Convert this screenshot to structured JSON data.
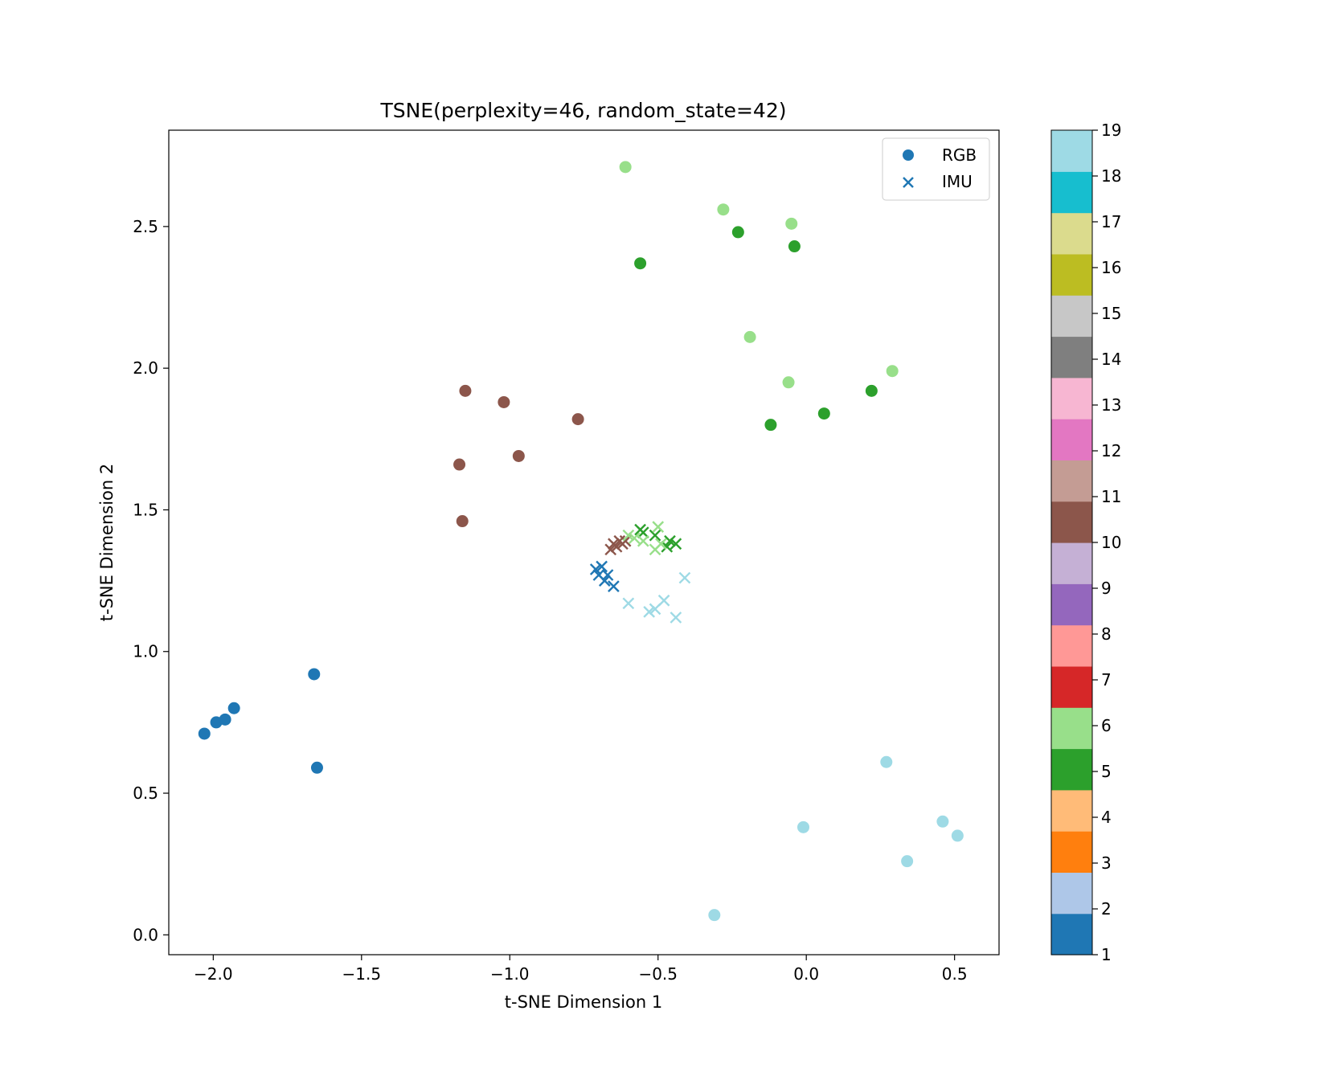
{
  "chart_data": {
    "type": "scatter",
    "title": "TSNE(perplexity=46, random_state=42)",
    "xlabel": "t-SNE Dimension 1",
    "ylabel": "t-SNE Dimension 2",
    "xlim": [
      -2.15,
      0.65
    ],
    "ylim": [
      -0.07,
      2.84
    ],
    "x_ticks": [
      -2.0,
      -1.5,
      -1.0,
      -0.5,
      0.0,
      0.5
    ],
    "x_tick_labels": [
      "−2.0",
      "−1.5",
      "−1.0",
      "−0.5",
      "0.0",
      "0.5"
    ],
    "y_ticks": [
      0.0,
      0.5,
      1.0,
      1.5,
      2.0,
      2.5
    ],
    "y_tick_labels": [
      "0.0",
      "0.5",
      "1.0",
      "1.5",
      "2.0",
      "2.5"
    ],
    "grid": false,
    "legend": {
      "placement": "top-right",
      "entries": [
        {
          "label": "RGB",
          "marker": "circle"
        },
        {
          "label": "IMU",
          "marker": "x"
        }
      ]
    },
    "colorbar": {
      "min": 1,
      "max": 19,
      "ticks": [
        "1",
        "2",
        "3",
        "4",
        "5",
        "6",
        "7",
        "8",
        "9",
        "10",
        "11",
        "12",
        "13",
        "14",
        "15",
        "16",
        "17",
        "18",
        "19"
      ],
      "colors": [
        "#1f77b4",
        "#aec7e8",
        "#ff7f0e",
        "#ffbb78",
        "#2ca02c",
        "#98df8a",
        "#d62728",
        "#ff9896",
        "#9467bd",
        "#c5b0d5",
        "#8c564b",
        "#c49c94",
        "#e377c2",
        "#f7b6d2",
        "#7f7f7f",
        "#c7c7c7",
        "#bcbd22",
        "#dbdb8d",
        "#17becf",
        "#9edae5"
      ]
    },
    "series": [
      {
        "marker": "circle",
        "label_value": 1,
        "color": "#1f77b4",
        "points": [
          [
            -2.03,
            0.71
          ],
          [
            -1.99,
            0.75
          ],
          [
            -1.96,
            0.76
          ],
          [
            -1.93,
            0.8
          ],
          [
            -1.66,
            0.92
          ],
          [
            -1.65,
            0.59
          ]
        ]
      },
      {
        "marker": "circle",
        "label_value": 10,
        "color": "#8c564b",
        "points": [
          [
            -1.15,
            1.92
          ],
          [
            -1.02,
            1.88
          ],
          [
            -0.77,
            1.82
          ],
          [
            -0.97,
            1.69
          ],
          [
            -1.17,
            1.66
          ],
          [
            -1.16,
            1.46
          ]
        ]
      },
      {
        "marker": "circle",
        "label_value": 5,
        "color": "#2ca02c",
        "points": [
          [
            -0.56,
            2.37
          ],
          [
            -0.23,
            2.48
          ],
          [
            -0.04,
            2.43
          ],
          [
            0.22,
            1.92
          ],
          [
            0.06,
            1.84
          ],
          [
            -0.12,
            1.8
          ]
        ]
      },
      {
        "marker": "circle",
        "label_value": 6,
        "color": "#98df8a",
        "points": [
          [
            -0.61,
            2.71
          ],
          [
            -0.28,
            2.56
          ],
          [
            -0.05,
            2.51
          ],
          [
            -0.19,
            2.11
          ],
          [
            -0.06,
            1.95
          ],
          [
            0.29,
            1.99
          ]
        ]
      },
      {
        "marker": "circle",
        "label_value": 19,
        "color": "#9edae5",
        "points": [
          [
            0.27,
            0.61
          ],
          [
            -0.01,
            0.38
          ],
          [
            0.46,
            0.4
          ],
          [
            0.51,
            0.35
          ],
          [
            0.34,
            0.26
          ],
          [
            -0.31,
            0.07
          ]
        ]
      },
      {
        "marker": "x",
        "label_value": 1,
        "color": "#1f77b4",
        "points": [
          [
            -0.71,
            1.29
          ],
          [
            -0.7,
            1.27
          ],
          [
            -0.69,
            1.3
          ],
          [
            -0.68,
            1.25
          ],
          [
            -0.67,
            1.27
          ],
          [
            -0.65,
            1.23
          ]
        ]
      },
      {
        "marker": "x",
        "label_value": 10,
        "color": "#8c564b",
        "points": [
          [
            -0.66,
            1.36
          ],
          [
            -0.65,
            1.38
          ],
          [
            -0.64,
            1.37
          ],
          [
            -0.62,
            1.38
          ],
          [
            -0.63,
            1.39
          ],
          [
            -0.61,
            1.39
          ]
        ]
      },
      {
        "marker": "x",
        "label_value": 5,
        "color": "#2ca02c",
        "points": [
          [
            -0.56,
            1.43
          ],
          [
            -0.55,
            1.42
          ],
          [
            -0.51,
            1.41
          ],
          [
            -0.47,
            1.37
          ],
          [
            -0.46,
            1.39
          ],
          [
            -0.44,
            1.38
          ]
        ]
      },
      {
        "marker": "x",
        "label_value": 6,
        "color": "#98df8a",
        "points": [
          [
            -0.58,
            1.4
          ],
          [
            -0.55,
            1.39
          ],
          [
            -0.51,
            1.36
          ],
          [
            -0.5,
            1.44
          ],
          [
            -0.49,
            1.38
          ],
          [
            -0.6,
            1.41
          ]
        ]
      },
      {
        "marker": "x",
        "label_value": 19,
        "color": "#9edae5",
        "points": [
          [
            -0.6,
            1.17
          ],
          [
            -0.53,
            1.14
          ],
          [
            -0.51,
            1.15
          ],
          [
            -0.48,
            1.18
          ],
          [
            -0.44,
            1.12
          ],
          [
            -0.41,
            1.26
          ]
        ]
      }
    ]
  }
}
